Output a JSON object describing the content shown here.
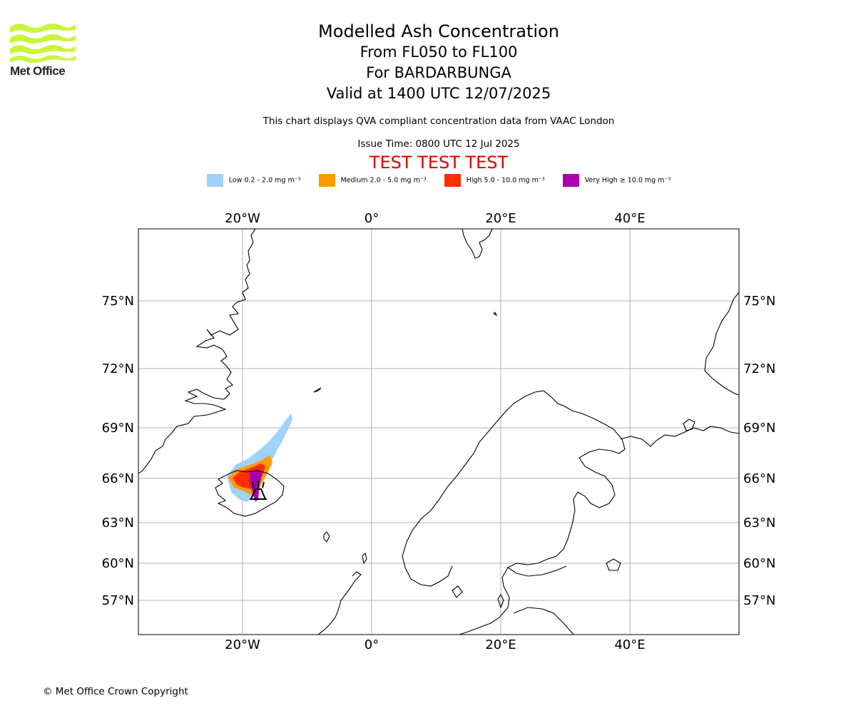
{
  "logo": {
    "name": "Met Office",
    "colors": {
      "waves": "#c8f53c",
      "text": "#222222"
    }
  },
  "titles": {
    "main": "Modelled Ash Concentration",
    "levels": "From FL050 to FL100",
    "volcano": "For BARDARBUNGA",
    "valid": "Valid at 1400 UTC 12/07/2025",
    "description": "This chart displays QVA compliant concentration data from VAAC London",
    "issue": "Issue Time: 0800 UTC 12 Jul 2025",
    "test": "TEST TEST TEST"
  },
  "legend": [
    {
      "label": "Low 0.2 - 2.0 mg m⁻³",
      "color": "#a0d2fa"
    },
    {
      "label": "Medium 2.0 - 5.0 mg m⁻³",
      "color": "#ff9b00"
    },
    {
      "label": "High 5.0 - 10.0 mg m⁻³",
      "color": "#ff2d00"
    },
    {
      "label": "Very High  ≥  10.0 mg m⁻³",
      "color": "#aa00aa"
    }
  ],
  "map": {
    "region": "North Atlantic / Scandinavia",
    "lon_range": [
      -36,
      57
    ],
    "lat_range": [
      53,
      80
    ],
    "lon_ticks": [
      "20°W",
      "0°",
      "20°E",
      "40°E"
    ],
    "lat_ticks": [
      "75°N",
      "72°N",
      "69°N",
      "66°N",
      "63°N",
      "60°N",
      "57°N"
    ],
    "grid_color": "#b0b0b0",
    "volcano_marker": "volcano-icon"
  },
  "footer": "© Met Office Crown Copyright"
}
